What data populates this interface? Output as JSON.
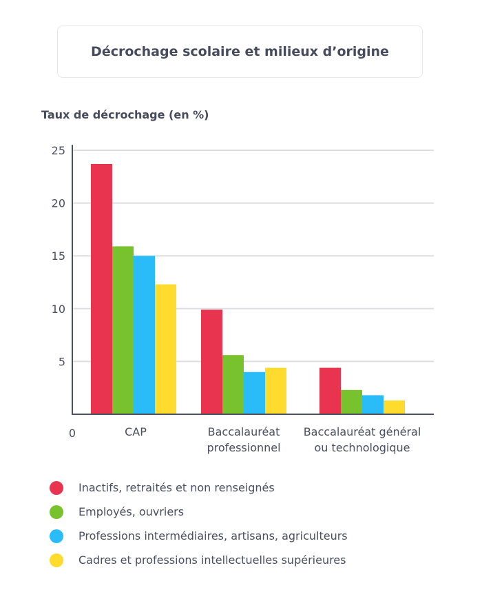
{
  "chart_data": {
    "type": "bar",
    "title": "Décrochage scolaire et milieux d’origine",
    "ylabel": "Taux de décrochage (en %)",
    "xlabel": "",
    "ylim": [
      0,
      25
    ],
    "yticks": [
      0,
      5,
      10,
      15,
      20,
      25
    ],
    "grid": true,
    "categories": [
      [
        "CAP"
      ],
      [
        "Baccalauréat",
        "professionnel"
      ],
      [
        "Baccalauréat général",
        "ou technologique"
      ]
    ],
    "series": [
      {
        "name": "Inactifs, retraités et non renseignés",
        "color": "#e8344f",
        "values": [
          23.7,
          9.9,
          4.4
        ]
      },
      {
        "name": "Employés, ouvriers",
        "color": "#78c22e",
        "values": [
          15.9,
          5.6,
          2.3
        ]
      },
      {
        "name": "Professions intermédiaires, artisans, agriculteurs",
        "color": "#2abcf9",
        "values": [
          15.0,
          4.0,
          1.8
        ]
      },
      {
        "name": "Cadres et professions intellectuelles supérieures",
        "color": "#fedb2c",
        "values": [
          12.3,
          4.4,
          1.3
        ]
      }
    ]
  }
}
